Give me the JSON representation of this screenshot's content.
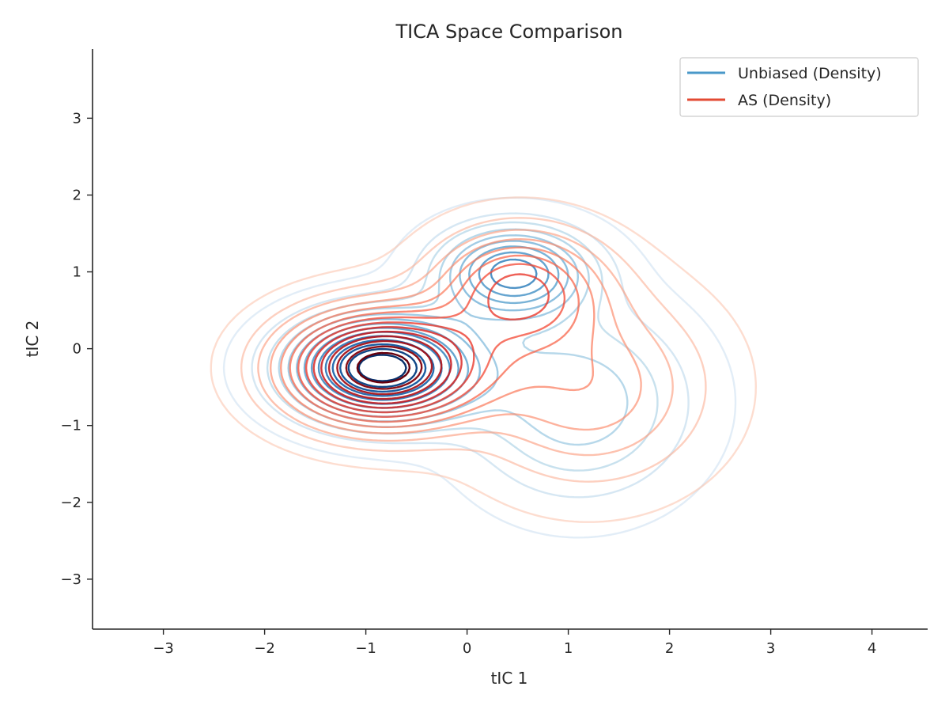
{
  "chart_data": {
    "type": "contour",
    "title": "TICA Space Comparison",
    "xlabel": "tIC 1",
    "ylabel": "tIC 2",
    "xlim": [
      -3.7,
      4.55
    ],
    "ylim": [
      -3.65,
      3.9
    ],
    "xticks": [
      -3,
      -2,
      -1,
      0,
      1,
      2,
      3,
      4
    ],
    "yticks": [
      -3,
      -2,
      -1,
      0,
      1,
      2,
      3
    ],
    "xtick_labels": [
      "−3",
      "−2",
      "−1",
      "0",
      "1",
      "2",
      "3",
      "4"
    ],
    "ytick_labels": [
      "−3",
      "−2",
      "−1",
      "0",
      "1",
      "2",
      "3"
    ],
    "grid": false,
    "legend_position": "top-right",
    "series": [
      {
        "name": "Unbiased (Density)",
        "colormap": "Blues",
        "legend_color": "#4a98c9",
        "levels": 14,
        "modes": [
          {
            "center": [
              -0.85,
              -0.25
            ],
            "sigma": [
              0.6,
              0.45
            ],
            "weight": 1.0
          },
          {
            "center": [
              0.45,
              1.0
            ],
            "sigma": [
              0.5,
              0.4
            ],
            "weight": 0.62
          },
          {
            "center": [
              1.1,
              -0.7
            ],
            "sigma": [
              0.75,
              0.85
            ],
            "weight": 0.3
          }
        ]
      },
      {
        "name": "AS (Density)",
        "colormap": "Reds",
        "legend_color": "#e34a33",
        "levels": 14,
        "modes": [
          {
            "center": [
              -0.85,
              -0.25
            ],
            "sigma": [
              0.65,
              0.5
            ],
            "weight": 1.0
          },
          {
            "center": [
              0.5,
              0.8
            ],
            "sigma": [
              0.55,
              0.5
            ],
            "weight": 0.5
          },
          {
            "center": [
              1.2,
              -0.5
            ],
            "sigma": [
              0.8,
              0.85
            ],
            "weight": 0.3
          }
        ]
      }
    ]
  }
}
